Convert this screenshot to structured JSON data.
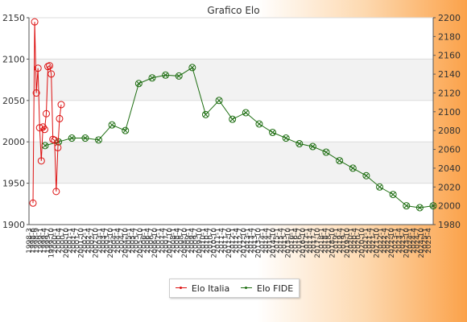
{
  "chart_data": {
    "type": "line",
    "title": "Grafico Elo",
    "y_left_range": [
      1900,
      2150
    ],
    "y_left_ticks": [
      "1900",
      "1950",
      "2000",
      "2050",
      "2100",
      "2150"
    ],
    "y_right_range": [
      1980,
      2200
    ],
    "y_right_ticks": [
      "1980",
      "2000",
      "2020",
      "2040",
      "2060",
      "2080",
      "2100",
      "2120",
      "2140",
      "2160",
      "2180",
      "2200"
    ],
    "x_tick_labels": [
      "1998-3",
      "1998-6",
      "1998-9",
      "1999-1",
      "1999-4",
      "1999-7",
      "1999-10",
      "2000-1",
      "2000-4",
      "2000-7",
      "2000-10",
      "2001-1",
      "2001-4",
      "2001-7",
      "2001-10",
      "2002-1",
      "2002-4",
      "2002-7",
      "2002-10",
      "2003-1",
      "2003-4",
      "2003-7",
      "2003-10",
      "2004-1",
      "2004-4",
      "2004-7",
      "2004-10",
      "2005-1",
      "2005-4",
      "2005-7",
      "2005-10",
      "2006-1",
      "2006-4",
      "2006-7",
      "2006-10",
      "2007-1",
      "2007-4",
      "2007-7",
      "2007-10",
      "2008-1",
      "2008-4",
      "2008-7",
      "2008-10",
      "2009-1",
      "2009-4",
      "2009-7",
      "2009-10",
      "2010-1",
      "2010-4",
      "2010-7",
      "2010-10",
      "2011-1",
      "2011-4",
      "2011-7",
      "2011-10",
      "2012-1",
      "2012-4",
      "2012-7",
      "2012-10",
      "2013-1",
      "2013-4",
      "2013-7",
      "2013-10",
      "2014-1",
      "2014-4",
      "2014-7",
      "2014-10",
      "2015-1",
      "2015-4",
      "2015-7",
      "2015-10",
      "2016-1",
      "2016-4",
      "2016-7",
      "2016-10",
      "2017-1",
      "2017-4",
      "2017-7",
      "2017-10",
      "2018-1",
      "2018-4",
      "2018-7",
      "2018-10",
      "2019-1",
      "2019-4",
      "2019-7",
      "2019-10",
      "2020-1",
      "2020-4",
      "2020-7",
      "2020-10",
      "2021-1",
      "2021-4",
      "2021-7",
      "2021-10",
      "2022-1",
      "2022-4",
      "2022-7",
      "2022-10",
      "2023-1",
      "2023-4",
      "2023-7",
      "2023-10",
      "2024-1",
      "2024-4",
      "2024-7",
      "2024-10",
      "2025-1",
      "2025-4"
    ],
    "grid": true,
    "legend_position": "bottom",
    "series": [
      {
        "name": "Elo Italia",
        "axis": "left",
        "color": "#dd1111",
        "values": [
          1926,
          2145,
          2059,
          2089,
          2017,
          1977,
          2018,
          2015,
          2034,
          2091,
          2092,
          2082,
          2003,
          2002,
          1940,
          1993,
          2028,
          2045
        ]
      },
      {
        "name": "Elo FIDE",
        "axis": "right",
        "color": "#1e6e12",
        "values": [
          2064,
          2068,
          2072,
          2072,
          2070,
          2086,
          2080,
          2130,
          2136,
          2139,
          2138,
          2147,
          2097,
          2112,
          2092,
          2099,
          2087,
          2078,
          2072,
          2066,
          2063,
          2057,
          2048,
          2040,
          2032,
          2020,
          2012,
          2000,
          1998,
          2000
        ]
      }
    ]
  },
  "legend": {
    "italia_label": "Elo Italia",
    "fide_label": "Elo FIDE"
  }
}
